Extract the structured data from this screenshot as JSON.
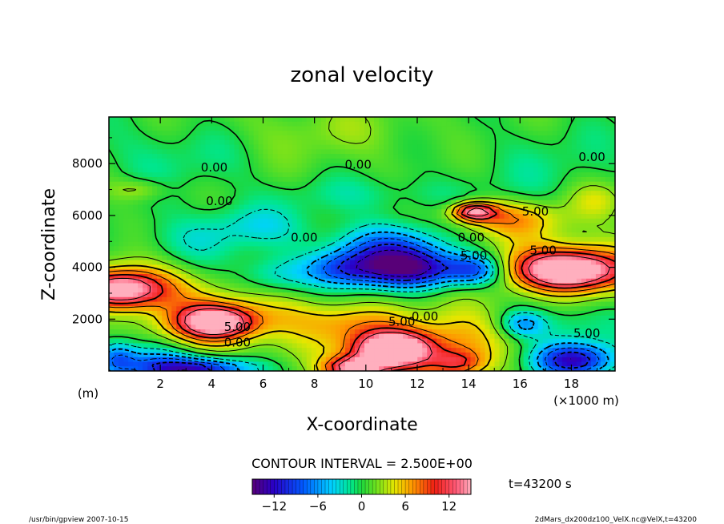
{
  "chart_data": {
    "type": "heatmap",
    "title": "zonal velocity",
    "xlabel": "X-coordinate",
    "ylabel": "Z-coordinate",
    "x_unit": "(×1000 m)",
    "y_unit": "(m)",
    "xlim": [
      0,
      19.7
    ],
    "ylim": [
      0,
      9800
    ],
    "x_ticks": [
      2,
      4,
      6,
      8,
      10,
      12,
      14,
      16,
      18
    ],
    "x_tick_labels": [
      "2",
      "4",
      "6",
      "8",
      "10",
      "12",
      "14",
      "16",
      "18"
    ],
    "y_ticks": [
      2000,
      4000,
      6000,
      8000
    ],
    "y_tick_labels": [
      "2000",
      "4000",
      "6000",
      "8000"
    ],
    "contour_interval_text": "CONTOUR INTERVAL = 2.500E+00",
    "colorbar": {
      "range": [
        -15,
        15
      ],
      "ticks": [
        -12,
        -6,
        0,
        6,
        12
      ],
      "tick_labels": [
        "−12",
        "−6",
        "0",
        "6",
        "12"
      ]
    },
    "contour_labels": [
      {
        "text": "0.00",
        "x": 4.1,
        "z": 7700
      },
      {
        "text": "0.00",
        "x": 9.7,
        "z": 7800
      },
      {
        "text": "0.00",
        "x": 18.8,
        "z": 8100
      },
      {
        "text": "0.00",
        "x": 4.3,
        "z": 6400
      },
      {
        "text": "0.00",
        "x": 7.6,
        "z": 5000
      },
      {
        "text": "0.00",
        "x": 14.1,
        "z": 5000
      },
      {
        "text": "5.00",
        "x": 14.2,
        "z": 4300
      },
      {
        "text": "5.00",
        "x": 16.6,
        "z": 6000
      },
      {
        "text": "5.00",
        "x": 16.9,
        "z": 4500
      },
      {
        "text": "0.00",
        "x": 12.3,
        "z": 1950
      },
      {
        "text": "5.00",
        "x": 11.4,
        "z": 1750
      },
      {
        "text": "5.00",
        "x": 5.0,
        "z": 1550
      },
      {
        "text": "0.00",
        "x": 5.0,
        "z": 950
      },
      {
        "text": "5.00",
        "x": 18.6,
        "z": 1300
      }
    ],
    "field": {
      "background": 0.8,
      "blobs": [
        {
          "x": 0.4,
          "z": 3150,
          "sx": 1.1,
          "sz": 480,
          "a": 13
        },
        {
          "x": 1.6,
          "z": 3200,
          "sx": 1.7,
          "sz": 750,
          "a": 5
        },
        {
          "x": 4.2,
          "z": 1900,
          "sx": 1.0,
          "sz": 420,
          "a": 12
        },
        {
          "x": 4.3,
          "z": 1800,
          "sx": 1.8,
          "sz": 750,
          "a": 6
        },
        {
          "x": 11.0,
          "z": 800,
          "sx": 1.0,
          "sz": 450,
          "a": 15
        },
        {
          "x": 11.6,
          "z": 900,
          "sx": 2.0,
          "sz": 900,
          "a": 7
        },
        {
          "x": 9.6,
          "z": 100,
          "sx": 0.8,
          "sz": 300,
          "a": 13
        },
        {
          "x": 13.6,
          "z": 300,
          "sx": 0.7,
          "sz": 350,
          "a": 6
        },
        {
          "x": 17.9,
          "z": 3900,
          "sx": 1.4,
          "sz": 500,
          "a": 14
        },
        {
          "x": 17.8,
          "z": 3900,
          "sx": 2.2,
          "sz": 900,
          "a": 6
        },
        {
          "x": 14.2,
          "z": 6150,
          "sx": 0.6,
          "sz": 250,
          "a": 12
        },
        {
          "x": 15.5,
          "z": 5900,
          "sx": 1.5,
          "sz": 500,
          "a": 6
        },
        {
          "x": 1.5,
          "z": 300,
          "sx": 1.2,
          "sz": 550,
          "a": -7
        },
        {
          "x": 3.6,
          "z": 80,
          "sx": 1.5,
          "sz": 300,
          "a": -11
        },
        {
          "x": 0.3,
          "z": 500,
          "sx": 0.5,
          "sz": 450,
          "a": -6
        },
        {
          "x": 10.8,
          "z": 4500,
          "sx": 1.6,
          "sz": 750,
          "a": -10
        },
        {
          "x": 12.2,
          "z": 3900,
          "sx": 1.6,
          "sz": 500,
          "a": -10
        },
        {
          "x": 9.0,
          "z": 3900,
          "sx": 1.0,
          "sz": 450,
          "a": -6
        },
        {
          "x": 14.3,
          "z": 3900,
          "sx": 0.7,
          "sz": 400,
          "a": -7
        },
        {
          "x": 18.1,
          "z": 400,
          "sx": 1.1,
          "sz": 450,
          "a": -12
        },
        {
          "x": 16.1,
          "z": 1800,
          "sx": 0.6,
          "sz": 350,
          "a": -6
        },
        {
          "x": 18.0,
          "z": 1900,
          "sx": 1.4,
          "sz": 900,
          "a": -3
        },
        {
          "x": 5.5,
          "z": 5600,
          "sx": 1.6,
          "sz": 600,
          "a": -3.5
        },
        {
          "x": 3.0,
          "z": 4900,
          "sx": 1.4,
          "sz": 700,
          "a": -2.5
        },
        {
          "x": 6.4,
          "z": 3700,
          "sx": 1.0,
          "sz": 500,
          "a": -4
        },
        {
          "x": 7.6,
          "z": 2200,
          "sx": 1.2,
          "sz": 600,
          "a": 2.5
        },
        {
          "x": 9.2,
          "z": 1800,
          "sx": 1.2,
          "sz": 500,
          "a": 3
        },
        {
          "x": 13.8,
          "z": 1500,
          "sx": 1.0,
          "sz": 900,
          "a": 2.5
        },
        {
          "x": 2.5,
          "z": 8400,
          "sx": 2.5,
          "sz": 1000,
          "a": -2
        },
        {
          "x": 17.0,
          "z": 8000,
          "sx": 2.5,
          "sz": 1200,
          "a": -1.5
        },
        {
          "x": 10.5,
          "z": 6800,
          "sx": 3.0,
          "sz": 500,
          "a": -2
        },
        {
          "x": 8.0,
          "z": 9200,
          "sx": 3.0,
          "sz": 800,
          "a": 1.5
        },
        {
          "x": 1.2,
          "z": 7000,
          "sx": 0.8,
          "sz": 300,
          "a": 3
        },
        {
          "x": 19.0,
          "z": 6600,
          "sx": 0.8,
          "sz": 500,
          "a": 3
        }
      ]
    }
  },
  "info": {
    "time_label": "t=43200 s",
    "footer_left": "/usr/bin/gpview  2007-10-15",
    "footer_right": "2dMars_dx200dz100_VelX.nc@VelX,t=43200"
  }
}
